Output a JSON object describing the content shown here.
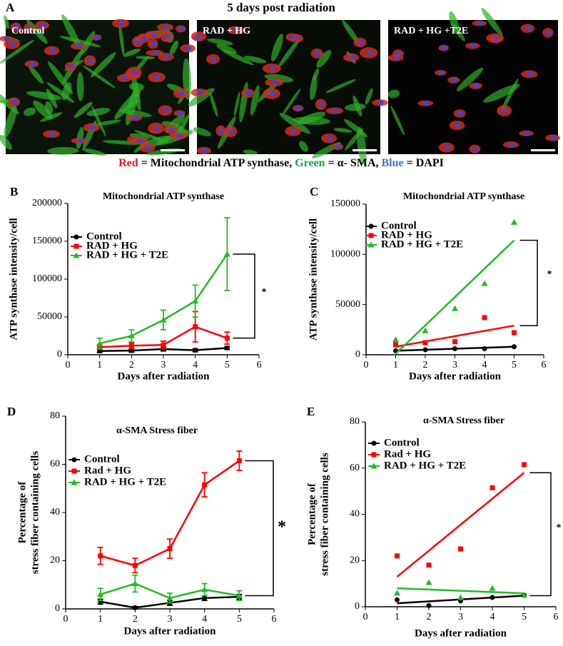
{
  "figure_a": {
    "panel": "A",
    "title": "5 days post radiation",
    "images": [
      "Control",
      "RAD + HG",
      "RAD + HG +T2E"
    ],
    "caption": [
      {
        "text": "Red",
        "color": "#e8141b"
      },
      {
        "text": " = Mitochondrial ATP synthase, ",
        "color": "#000000"
      },
      {
        "text": "Green",
        "color": "#13a84a"
      },
      {
        "text": " = α- SMA, ",
        "color": "#000000"
      },
      {
        "text": "Blue",
        "color": "#4472c4"
      },
      {
        "text": " = DAPI",
        "color": "#000000"
      }
    ]
  },
  "chart_data": [
    {
      "type": "line",
      "panel": "B",
      "title": "Mitochondrial ATP synthase",
      "x_label": "Days after radiation",
      "y_label": [
        "ATP synthase intensity/cell"
      ],
      "x": [
        1,
        2,
        3,
        4,
        5
      ],
      "xlim": [
        0,
        6
      ],
      "xticks": [
        0,
        1,
        2,
        3,
        4,
        5,
        6
      ],
      "ylim": [
        0,
        200000
      ],
      "yticks": [
        0,
        50000,
        100000,
        150000,
        200000
      ],
      "annotation": "*",
      "series": [
        {
          "name": "Control",
          "color": "#000000",
          "marker": "circle",
          "values": [
            5000,
            5500,
            7500,
            6000,
            9000
          ],
          "errors": [
            2000,
            2000,
            2500,
            2000,
            2000
          ]
        },
        {
          "name": "RAD + HG",
          "color": "#ff0000",
          "marker": "square",
          "values": [
            10000,
            12000,
            13000,
            37000,
            22000
          ],
          "errors": [
            3000,
            4000,
            5000,
            20000,
            8000
          ]
        },
        {
          "name": "RAD + HG + T2E",
          "color": "#22bb22",
          "marker": "triangle",
          "values": [
            15000,
            25000,
            46000,
            71000,
            133000
          ],
          "errors": [
            7000,
            8000,
            13000,
            21000,
            48000
          ]
        }
      ]
    },
    {
      "type": "scatter",
      "panel": "C",
      "title": "Mitochondrial ATP synthase",
      "x_label": "Days after radiation",
      "y_label": [
        "ATP synthase intensity/cell"
      ],
      "x": [
        1,
        2,
        3,
        4,
        5
      ],
      "xlim": [
        0,
        6
      ],
      "xticks": [
        0,
        1,
        2,
        3,
        4,
        5,
        6
      ],
      "ylim": [
        0,
        150000
      ],
      "yticks": [
        0,
        50000,
        100000,
        150000
      ],
      "annotation": "*",
      "series": [
        {
          "name": "Control",
          "color": "#000000",
          "marker": "circle",
          "values": [
            4000,
            5000,
            6000,
            6000,
            8000
          ],
          "trendline": {
            "x": [
              1,
              5
            ],
            "y": [
              4000,
              8000
            ]
          }
        },
        {
          "name": "RAD + HG",
          "color": "#ff0000",
          "marker": "square",
          "values": [
            10000,
            12000,
            13000,
            37000,
            22000
          ],
          "trendline": {
            "x": [
              1,
              5
            ],
            "y": [
              8000,
              29000
            ]
          }
        },
        {
          "name": "RAD + HG + T2E",
          "color": "#22bb22",
          "marker": "triangle",
          "values": [
            15000,
            24000,
            46000,
            71000,
            132000
          ],
          "trendline": {
            "x": [
              1,
              5
            ],
            "y": [
              1000,
              114000
            ]
          }
        }
      ]
    },
    {
      "type": "line",
      "panel": "D",
      "title": "α-SMA Stress fiber",
      "x_label": "Days after radiation",
      "y_label": [
        "Percentage of",
        "stress fiber containing cells"
      ],
      "x": [
        1,
        2,
        3,
        4,
        5
      ],
      "xlim": [
        0,
        6
      ],
      "xticks": [
        0,
        1,
        2,
        3,
        4,
        5,
        6
      ],
      "ylim": [
        0,
        80
      ],
      "yticks": [
        0,
        20,
        40,
        60,
        80
      ],
      "annotation": "*",
      "series": [
        {
          "name": "Control",
          "color": "#000000",
          "marker": "circle",
          "values": [
            3,
            0.5,
            2.5,
            4.5,
            5
          ],
          "errors": [
            1,
            0.5,
            1,
            1,
            1
          ]
        },
        {
          "name": "Rad + HG",
          "color": "#ff0000",
          "marker": "square",
          "values": [
            22,
            18,
            25,
            51.5,
            61.5
          ],
          "errors": [
            3.5,
            3,
            4,
            5,
            4
          ]
        },
        {
          "name": "RAD + HG + T2E",
          "color": "#22bb22",
          "marker": "triangle",
          "values": [
            6,
            10.5,
            4.5,
            8,
            5.5
          ],
          "errors": [
            2.5,
            3.5,
            2,
            2.5,
            2
          ]
        }
      ]
    },
    {
      "type": "scatter",
      "panel": "E",
      "title": "α-SMA Stress fiber",
      "x_label": "Days after radiation",
      "y_label": [
        "Percentage of",
        "stress fiber containing cells"
      ],
      "x": [
        1,
        2,
        3,
        4,
        5
      ],
      "xlim": [
        0,
        6
      ],
      "xticks": [
        0,
        1,
        2,
        3,
        4,
        5,
        6
      ],
      "ylim": [
        0,
        80
      ],
      "yticks": [
        0,
        20,
        40,
        60,
        80
      ],
      "annotation": "*",
      "series": [
        {
          "name": "Control",
          "color": "#000000",
          "marker": "circle",
          "values": [
            3,
            0.5,
            2.5,
            4,
            5
          ],
          "trendline": {
            "x": [
              1,
              5
            ],
            "y": [
              1.5,
              4.8
            ]
          }
        },
        {
          "name": "Rad + HG",
          "color": "#ff0000",
          "marker": "square",
          "values": [
            22,
            18,
            25,
            51.5,
            61.5
          ],
          "trendline": {
            "x": [
              1,
              5
            ],
            "y": [
              13,
              58
            ]
          }
        },
        {
          "name": "RAD + HG + T2E",
          "color": "#22bb22",
          "marker": "triangle",
          "values": [
            6,
            10.5,
            4,
            8,
            5
          ],
          "trendline": {
            "x": [
              1,
              5
            ],
            "y": [
              8,
              5.8
            ]
          }
        }
      ]
    }
  ]
}
